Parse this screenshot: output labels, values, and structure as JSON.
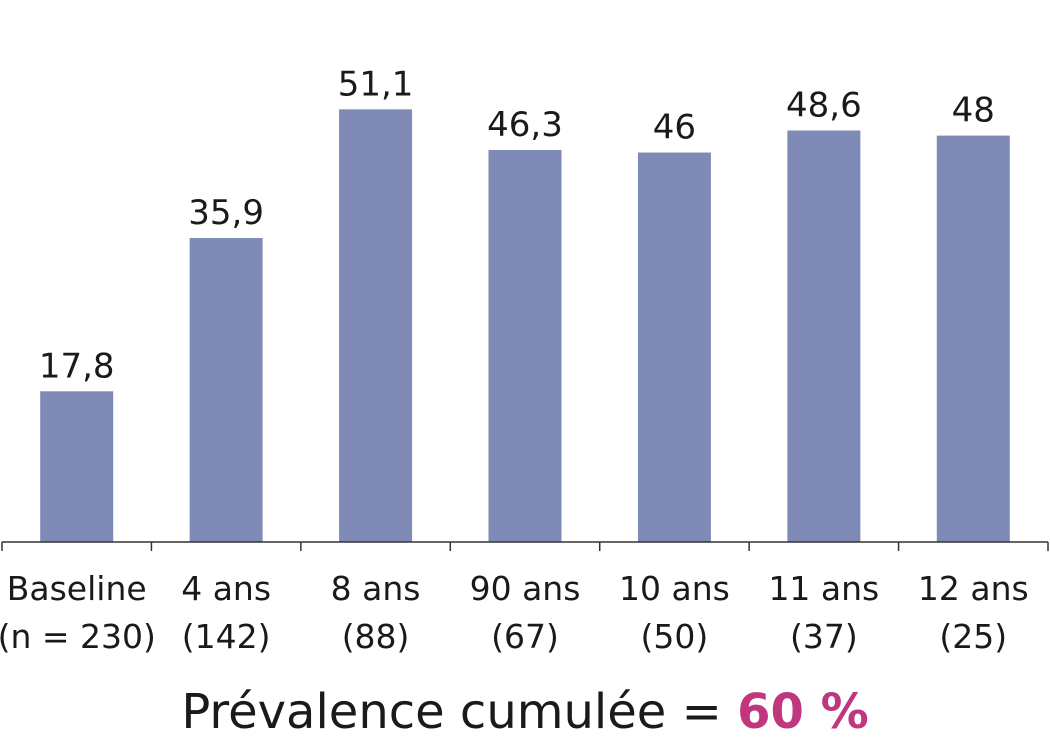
{
  "chart_data": {
    "type": "bar",
    "categories": [
      [
        "Baseline",
        "(n = 230)"
      ],
      [
        "4 ans",
        "(142)"
      ],
      [
        "8 ans",
        "(88)"
      ],
      [
        "90 ans",
        "(67)"
      ],
      [
        "10 ans",
        "(50)"
      ],
      [
        "11 ans",
        "(37)"
      ],
      [
        "12 ans",
        "(25)"
      ]
    ],
    "values": [
      17.8,
      35.9,
      51.1,
      46.3,
      46,
      48.6,
      48
    ],
    "value_labels": [
      "17,8",
      "35,9",
      "51,1",
      "46,3",
      "46",
      "48,6",
      "48"
    ],
    "ylim": [
      0,
      60
    ],
    "grid": false,
    "bar_color": "#7f8ab7"
  },
  "caption": {
    "text": "Prévalence cumulée = ",
    "highlight": "60 %",
    "highlight_color": "#c0367f"
  }
}
